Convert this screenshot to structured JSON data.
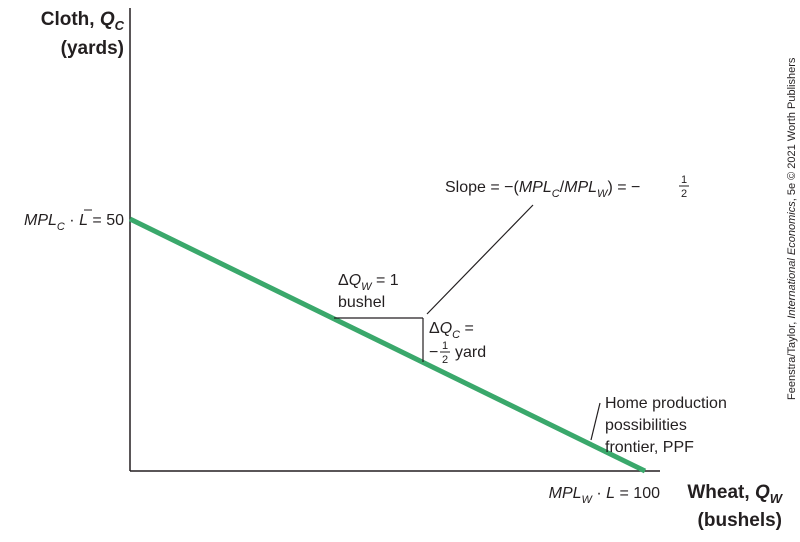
{
  "chart_data": {
    "type": "line",
    "title": "",
    "ylabel": "Cloth, Q_C (yards)",
    "xlabel": "Wheat, Q_W (bushels)",
    "y_intercept_label": "MPL_C · L̄ = 50",
    "x_intercept_label": "MPL_W · L̄ = 100",
    "xlim": [
      0,
      100
    ],
    "ylim": [
      0,
      50
    ],
    "series": [
      {
        "name": "Home production possibilities frontier, PPF",
        "x": [
          0,
          100
        ],
        "y": [
          50,
          0
        ],
        "color": "#3aa86b"
      }
    ],
    "annotations": {
      "slope": "Slope = −(MPL_C/MPL_W) = −1/2",
      "delta_w": "ΔQ_W = 1 bushel",
      "delta_c": "ΔQ_C = −1/2 yard",
      "ppf_label": [
        "Home production",
        "possibilities",
        "frontier, PPF"
      ]
    },
    "credit": "Feenstra/Taylor, International Economics, 5e © 2021 Worth Publishers"
  },
  "text": {
    "y_title_1": "Cloth, ",
    "y_title_q": "Q",
    "y_title_sub": "C",
    "y_title_2": "(yards)",
    "x_title_1": "Wheat, ",
    "x_title_q": "Q",
    "x_title_sub": "W",
    "x_title_2": "(bushels)",
    "yint_mpl": "MPL",
    "yint_sub": "C",
    "yint_rest": " = 50",
    "xint_mpl": "MPL",
    "xint_sub": "W",
    "xint_rest": " = 100",
    "slope_1": "Slope = −(",
    "slope_mpl1": "MPL",
    "slope_sub1": "C",
    "slope_slash": "/",
    "slope_mpl2": "MPL",
    "slope_sub2": "W",
    "slope_2": ") = −",
    "frac_num": "1",
    "frac_den": "2",
    "dw_delta": "Δ",
    "dw_q": "Q",
    "dw_sub": "W",
    "dw_rest": " = 1",
    "dw_unit": "bushel",
    "dc_delta": "Δ",
    "dc_q": "Q",
    "dc_sub": "C",
    "dc_rest": " =",
    "dc_minus": "−",
    "dc_unit": "yard",
    "ppf_1": "Home production",
    "ppf_2": "possibilities",
    "ppf_3": "frontier, PPF",
    "credit_1": "Feenstra/Taylor, ",
    "credit_2": "International Economics",
    "credit_3": ", 5e © 2021 Worth Publishers"
  }
}
